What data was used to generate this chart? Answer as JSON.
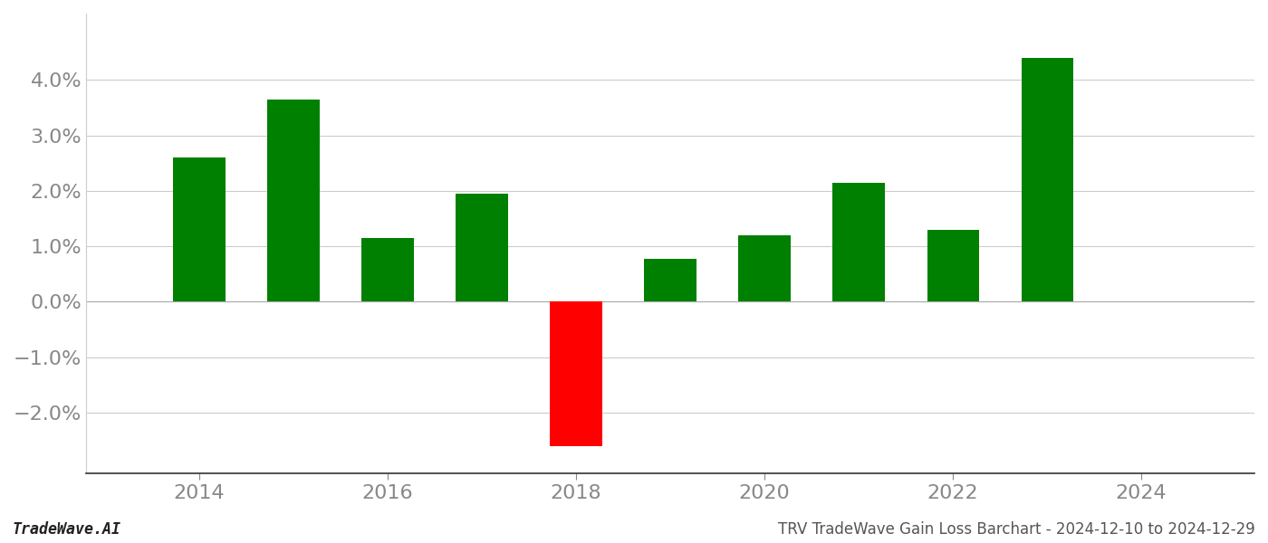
{
  "years": [
    2014,
    2015,
    2016,
    2017,
    2018,
    2019,
    2020,
    2021,
    2022,
    2023
  ],
  "values": [
    0.026,
    0.0365,
    0.0115,
    0.0195,
    -0.026,
    0.0078,
    0.012,
    0.0215,
    0.013,
    0.044
  ],
  "colors": [
    "#008000",
    "#008000",
    "#008000",
    "#008000",
    "#ff0000",
    "#008000",
    "#008000",
    "#008000",
    "#008000",
    "#008000"
  ],
  "bar_width": 0.55,
  "ylim": [
    -0.031,
    0.052
  ],
  "yticks": [
    -0.02,
    -0.01,
    0.0,
    0.01,
    0.02,
    0.03,
    0.04
  ],
  "xticks": [
    2014,
    2016,
    2018,
    2020,
    2022,
    2024
  ],
  "xlim": [
    2012.8,
    2025.2
  ],
  "footer_left": "TradeWave.AI",
  "footer_right": "TRV TradeWave Gain Loss Barchart - 2024-12-10 to 2024-12-29",
  "background_color": "#ffffff",
  "grid_color": "#cccccc",
  "tick_label_color": "#888888",
  "footer_fontsize": 12,
  "tick_fontsize": 16
}
